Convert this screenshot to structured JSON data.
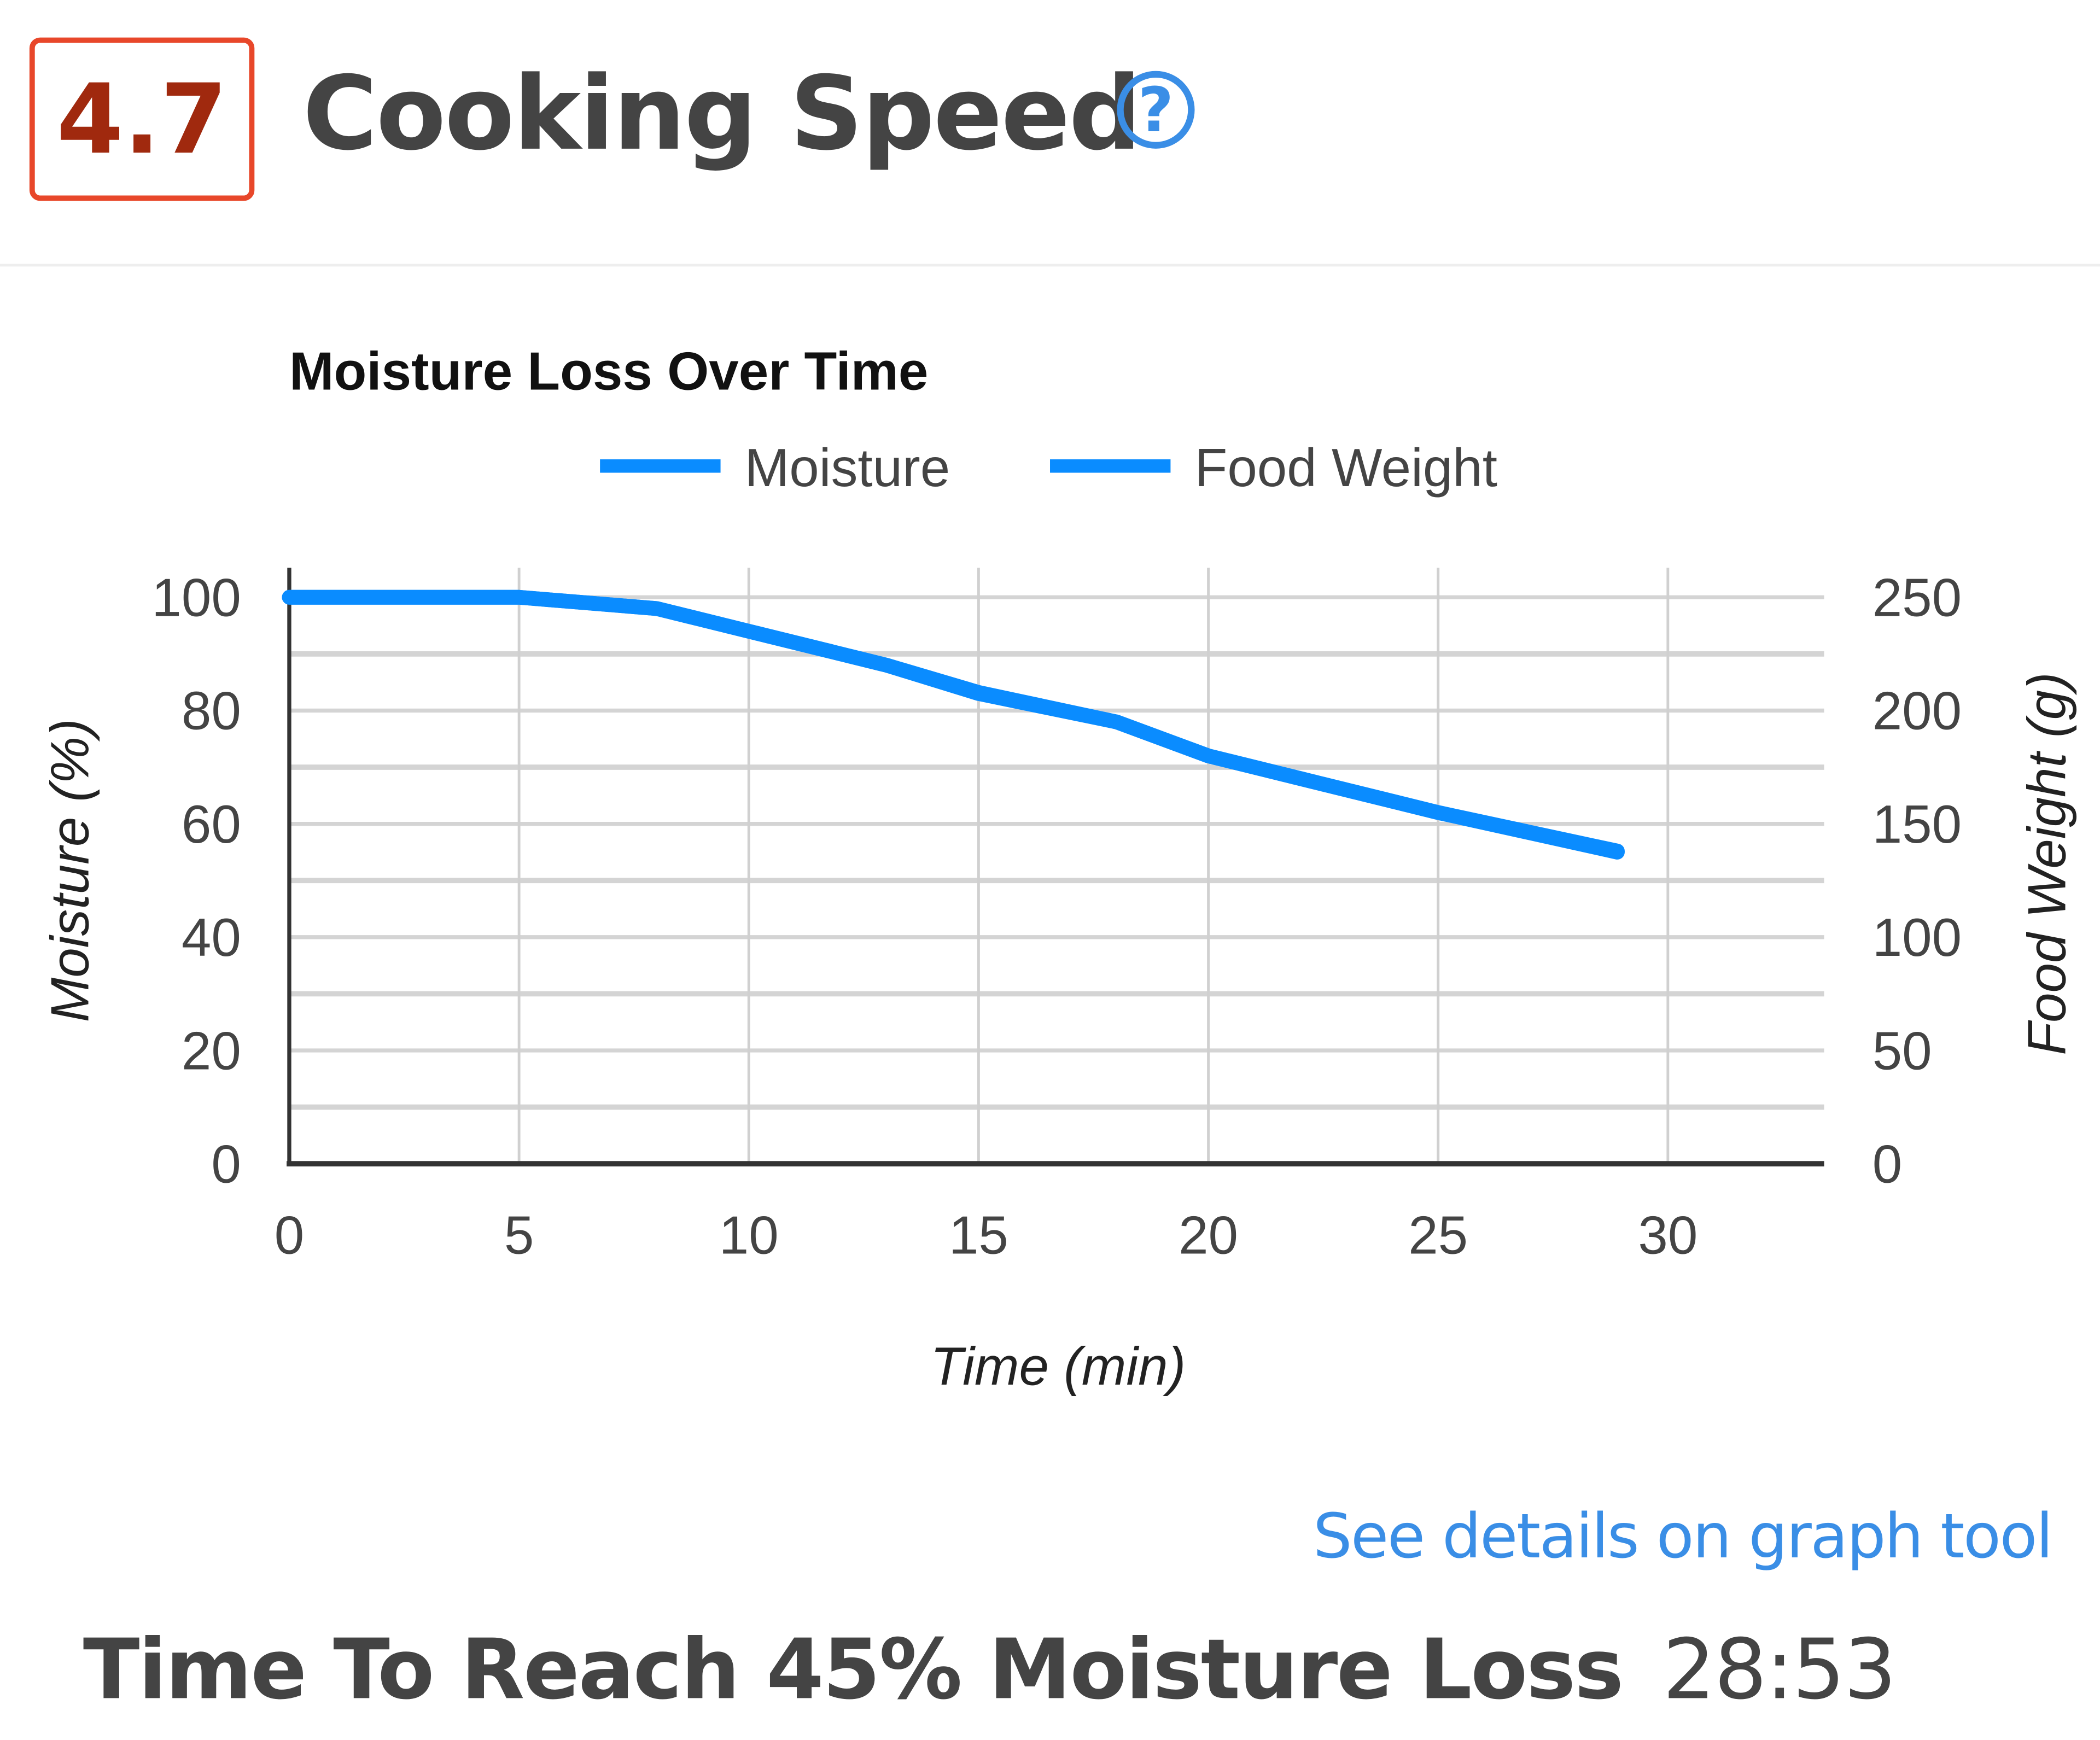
{
  "header": {
    "score": "4.7",
    "title": "Cooking Speed",
    "help_icon": "question-circle-icon",
    "accent": "#e8472a",
    "link_color": "#3a8ee6"
  },
  "chart_data": {
    "type": "line",
    "title": "Moisture Loss Over Time",
    "xlabel": "Time (min)",
    "ylabel": "Moisture (%)",
    "y2label": "Food Weight (g)",
    "xlim": [
      0,
      33.4
    ],
    "ylim": [
      0,
      100
    ],
    "y2lim": [
      0,
      250
    ],
    "xticks": [
      "0",
      "5",
      "10",
      "15",
      "20",
      "25",
      "30"
    ],
    "yticks": [
      "0",
      "20",
      "40",
      "60",
      "80",
      "100"
    ],
    "y2ticks": [
      "0",
      "50",
      "100",
      "150",
      "200",
      "250"
    ],
    "grid": true,
    "legend": "top",
    "x": [
      0,
      5,
      8,
      10,
      13,
      15,
      18,
      20,
      22,
      25,
      28.9
    ],
    "series": [
      {
        "name": "Moisture",
        "color": "#0a8cff",
        "axis": "left",
        "values": [
          100,
          100,
          98,
          94,
          88,
          83,
          78,
          72,
          68,
          62,
          55
        ]
      },
      {
        "name": "Food Weight",
        "color": "#0a8cff",
        "axis": "right",
        "values": [
          250,
          250,
          245,
          235,
          220,
          208,
          195,
          180,
          170,
          155,
          138
        ]
      }
    ]
  },
  "footer": {
    "link": "See details on graph tool",
    "metric_label": "Time To Reach 45% Moisture Loss",
    "metric_value": "28:53"
  }
}
